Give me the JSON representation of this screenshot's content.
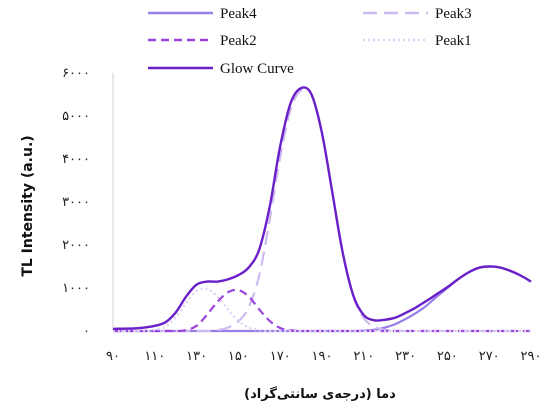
{
  "chart_data": {
    "type": "line",
    "xlabel": "دما (درجه‌ی سانتی‌گراد)",
    "ylabel": "TL Intensity  (a.u.)",
    "xlim": [
      90,
      290
    ],
    "ylim": [
      0,
      6000
    ],
    "x_ticks": [
      90,
      110,
      130,
      150,
      170,
      190,
      210,
      230,
      250,
      270,
      290
    ],
    "x_tick_labels": [
      "۹۰",
      "۱۱۰",
      "۱۳۰",
      "۱۵۰",
      "۱۷۰",
      "۱۹۰",
      "۲۱۰",
      "۲۳۰",
      "۲۵۰",
      "۲۷۰",
      "۲۹۰"
    ],
    "y_ticks": [
      0,
      1000,
      2000,
      3000,
      4000,
      5000,
      6000
    ],
    "y_tick_labels": [
      "۰",
      "۱۰۰۰",
      "۲۰۰۰",
      "۳۰۰۰",
      "۴۰۰۰",
      "۵۰۰۰",
      "۶۰۰۰"
    ],
    "grid": false,
    "legend_position": "top",
    "x": [
      90,
      100,
      105,
      110,
      115,
      120,
      125,
      130,
      135,
      140,
      145,
      150,
      155,
      160,
      165,
      170,
      175,
      180,
      185,
      190,
      195,
      200,
      205,
      210,
      215,
      220,
      225,
      230,
      235,
      240,
      245,
      250,
      255,
      260,
      265,
      270,
      275,
      280,
      285,
      290
    ],
    "series": [
      {
        "name": "Peak4",
        "color": "#9a7ee8",
        "dash": "solid",
        "values": [
          0,
          0,
          0,
          0,
          0,
          0,
          0,
          0,
          0,
          0,
          0,
          0,
          0,
          0,
          0,
          0,
          0,
          0,
          0,
          0,
          0,
          0,
          0,
          10,
          30,
          80,
          160,
          280,
          420,
          590,
          800,
          1000,
          1200,
          1360,
          1470,
          1500,
          1480,
          1400,
          1290,
          1150
        ]
      },
      {
        "name": "Peak3",
        "color": "#cdbaf0",
        "dash": "long",
        "values": [
          0,
          0,
          0,
          0,
          0,
          0,
          0,
          0,
          0,
          20,
          80,
          220,
          560,
          1300,
          2600,
          4050,
          5150,
          5600,
          5500,
          4600,
          3200,
          1800,
          800,
          300,
          100,
          30,
          10,
          0,
          0,
          0,
          0,
          0,
          0,
          0,
          0,
          0,
          0,
          0,
          0,
          0
        ]
      },
      {
        "name": "Peak2",
        "color": "#9a44e0",
        "dash": "dash",
        "values": [
          0,
          0,
          0,
          0,
          0,
          0,
          20,
          120,
          380,
          680,
          900,
          950,
          800,
          500,
          230,
          70,
          15,
          0,
          0,
          0,
          0,
          0,
          0,
          0,
          0,
          0,
          0,
          0,
          0,
          0,
          0,
          0,
          0,
          0,
          0,
          0,
          0,
          0,
          0,
          0
        ]
      },
      {
        "name": "Peak1",
        "color": "#dcd0f5",
        "dash": "dot",
        "values": [
          0,
          0,
          0,
          20,
          100,
          320,
          650,
          930,
          980,
          800,
          500,
          230,
          80,
          20,
          0,
          0,
          0,
          0,
          0,
          0,
          0,
          0,
          0,
          0,
          0,
          0,
          0,
          0,
          0,
          0,
          0,
          0,
          0,
          0,
          0,
          0,
          0,
          0,
          0,
          0
        ]
      },
      {
        "name": "Glow Curve",
        "color": "#6a1fc9",
        "dash": "solid",
        "values": [
          50,
          60,
          80,
          120,
          200,
          430,
          800,
          1080,
          1150,
          1150,
          1200,
          1300,
          1480,
          1900,
          2900,
          4300,
          5300,
          5650,
          5500,
          4600,
          3200,
          1800,
          820,
          370,
          250,
          260,
          310,
          420,
          550,
          700,
          860,
          1020,
          1200,
          1360,
          1470,
          1500,
          1480,
          1400,
          1290,
          1150
        ]
      }
    ]
  }
}
